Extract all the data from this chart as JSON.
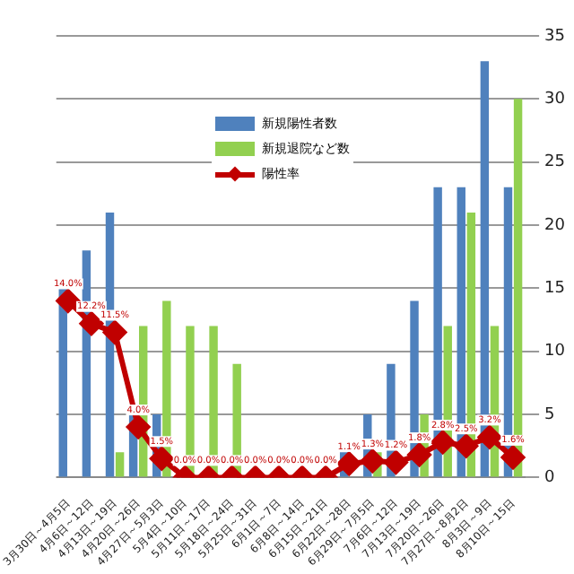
{
  "chart_data": {
    "type": "bar",
    "categories": [
      "3月30日～4月5日",
      "4月6日～12日",
      "4月13日～19日",
      "4月20日～26日",
      "4月27日～5月3日",
      "5月4日～10日",
      "5月11日～17日",
      "5月18日～24日",
      "5月25日～31日",
      "6月1日～7日",
      "6月8日～14日",
      "6月15日～21日",
      "6月22日～28日",
      "6月29日～7月5日",
      "7月6日～12日",
      "7月13日～19日",
      "7月20日～26日",
      "7月27日～8月2日",
      "8月3日～9日",
      "8月10日～15日"
    ],
    "series": [
      {
        "name": "新規陽性者数",
        "axis": "y2",
        "color": "#4f81bd",
        "values": [
          15,
          18,
          21,
          5,
          5,
          0,
          0,
          0,
          0,
          0,
          0,
          0,
          2,
          5,
          9,
          14,
          23,
          23,
          33,
          23
        ]
      },
      {
        "name": "新規退院など数",
        "axis": "y2",
        "color": "#92d050",
        "values": [
          0,
          0,
          2,
          12,
          14,
          12,
          12,
          9,
          0,
          0,
          0,
          0,
          0,
          2,
          0,
          5,
          12,
          21,
          12,
          30
        ]
      },
      {
        "name": "陽性率",
        "type": "line",
        "axis": "y",
        "color": "#c00000",
        "marker": "diamond",
        "values": [
          14.0,
          12.2,
          11.5,
          4.0,
          1.5,
          0.0,
          0.0,
          0.0,
          0.0,
          0.0,
          0.0,
          0.0,
          1.1,
          1.3,
          1.2,
          1.8,
          2.8,
          2.5,
          3.2,
          1.6
        ],
        "value_labels": [
          "14.0%",
          "12.2%",
          "11.5%",
          "4.0%",
          "1.5%",
          "0.0%",
          "0.0%",
          "0.0%",
          "0.0%",
          "0.0%",
          "0.0%",
          "0.0%",
          "1.1%",
          "1.3%",
          "1.2%",
          "1.8%",
          "2.8%",
          "2.5%",
          "3.2%",
          "1.6%"
        ]
      }
    ],
    "y2lim": [
      0,
      35
    ],
    "y2ticks": [
      0,
      5,
      10,
      15,
      20,
      25,
      30,
      35
    ],
    "grid": "y",
    "legend": "top"
  }
}
